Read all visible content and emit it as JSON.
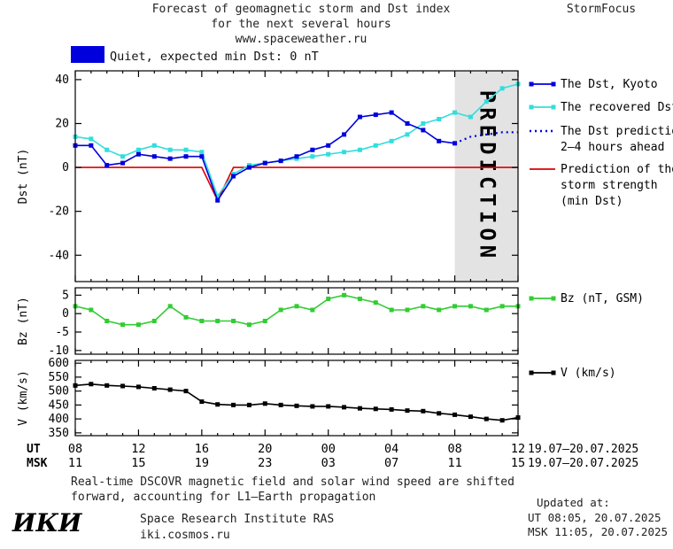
{
  "header": {
    "title_line1": "Forecast of geomagnetic storm and Dst index",
    "title_line2": "for the next several hours",
    "title_line3": "www.spaceweather.ru",
    "brand": "StormFocus"
  },
  "status": {
    "swatch_color": "#0000dd",
    "label": "Quiet, expected min Dst: 0 nT"
  },
  "chart_data": [
    {
      "type": "line",
      "name": "dst",
      "ylabel": "Dst (nT)",
      "xlim": [
        8,
        36
      ],
      "ylim": [
        -52,
        44
      ],
      "yticks": [
        40,
        20,
        0,
        -20,
        -40
      ],
      "prediction_band": {
        "x_start": 32,
        "x_end": 36,
        "label": "PREDICTION",
        "fill": "#e3e3e3",
        "text_color": "#bdbdbd"
      },
      "series": [
        {
          "name": "min-dst-prediction",
          "label": "Prediction of the storm strength (min Dst)",
          "color": "#dd0000",
          "marker": false,
          "dashed": false,
          "x": [
            8,
            16,
            17,
            18,
            36
          ],
          "values": [
            0,
            0,
            -15,
            0,
            0
          ]
        },
        {
          "name": "recovered-dst",
          "label": "The recovered Dst",
          "color": "#33dddd",
          "marker": true,
          "dashed": false,
          "x": [
            8,
            9,
            10,
            11,
            12,
            13,
            14,
            15,
            16,
            17,
            18,
            19,
            20,
            21,
            22,
            23,
            24,
            25,
            26,
            27,
            28,
            29,
            30,
            31,
            32,
            33,
            34,
            35,
            36
          ],
          "values": [
            14,
            13,
            8,
            5,
            8,
            10,
            8,
            8,
            7,
            -13,
            -3,
            1,
            2,
            3,
            4,
            5,
            6,
            7,
            8,
            10,
            12,
            15,
            20,
            22,
            25,
            23,
            30,
            36,
            38
          ]
        },
        {
          "name": "dst-kyoto",
          "label": "The Dst, Kyoto",
          "color": "#0000dd",
          "marker": true,
          "dashed": false,
          "x": [
            8,
            9,
            10,
            11,
            12,
            13,
            14,
            15,
            16,
            17,
            18,
            19,
            20,
            21,
            22,
            23,
            24,
            25,
            26,
            27,
            28,
            29,
            30,
            31,
            32
          ],
          "values": [
            10,
            10,
            1,
            2,
            6,
            5,
            4,
            5,
            5,
            -15,
            -4,
            0,
            2,
            3,
            5,
            8,
            10,
            15,
            23,
            24,
            25,
            20,
            17,
            12,
            11
          ]
        },
        {
          "name": "dst-prediction",
          "label": "The Dst prediction 2–4 hours ahead",
          "color": "#0000dd",
          "marker": false,
          "dashed": true,
          "x": [
            32,
            33,
            34,
            35,
            36
          ],
          "values": [
            11,
            14,
            15,
            16,
            16
          ]
        }
      ]
    },
    {
      "type": "line",
      "name": "bz",
      "ylabel": "Bz (nT)",
      "xlim": [
        8,
        36
      ],
      "ylim": [
        -11,
        7
      ],
      "yticks": [
        5,
        0,
        -5,
        -10
      ],
      "series": [
        {
          "name": "bz-gsm",
          "label": "Bz (nT, GSM)",
          "color": "#33cc33",
          "marker": true,
          "dashed": false,
          "x": [
            8,
            9,
            10,
            11,
            12,
            13,
            14,
            15,
            16,
            17,
            18,
            19,
            20,
            21,
            22,
            23,
            24,
            25,
            26,
            27,
            28,
            29,
            30,
            31,
            32,
            33,
            34,
            35,
            36
          ],
          "values": [
            2,
            1,
            -2,
            -3,
            -3,
            -2,
            2,
            -1,
            -2,
            -2,
            -2,
            -3,
            -2,
            1,
            2,
            1,
            4,
            5,
            4,
            3,
            1,
            1,
            2,
            1,
            2,
            2,
            1,
            2,
            2
          ]
        }
      ]
    },
    {
      "type": "line",
      "name": "v",
      "ylabel": "V (km/s)",
      "xlim": [
        8,
        36
      ],
      "ylim": [
        340,
        610
      ],
      "yticks": [
        600,
        550,
        500,
        450,
        400,
        350
      ],
      "series": [
        {
          "name": "solar-wind-speed",
          "label": "V (km/s)",
          "color": "#000000",
          "marker": true,
          "dashed": false,
          "x": [
            8,
            9,
            10,
            11,
            12,
            13,
            14,
            15,
            16,
            17,
            18,
            19,
            20,
            21,
            22,
            23,
            24,
            25,
            26,
            27,
            28,
            29,
            30,
            31,
            32,
            33,
            34,
            35,
            36
          ],
          "values": [
            520,
            525,
            520,
            518,
            515,
            510,
            505,
            500,
            462,
            452,
            450,
            450,
            455,
            450,
            447,
            445,
            445,
            442,
            438,
            436,
            434,
            430,
            428,
            420,
            415,
            408,
            400,
            395,
            405
          ]
        }
      ]
    }
  ],
  "xaxis": {
    "ut_label": "UT",
    "msk_label": "MSK",
    "ut_ticks": [
      "08",
      "12",
      "16",
      "20",
      "00",
      "04",
      "08",
      "12"
    ],
    "msk_ticks": [
      "11",
      "15",
      "19",
      "23",
      "03",
      "07",
      "11",
      "15"
    ],
    "ut_date_range": "19.07–20.07.2025",
    "msk_date_range": "19.07–20.07.2025"
  },
  "legend": {
    "items": [
      {
        "name": "dst-kyoto",
        "color": "#0000dd",
        "line": "solid",
        "marker": true,
        "lines": [
          "The Dst, Kyoto"
        ]
      },
      {
        "name": "recovered-dst",
        "color": "#33dddd",
        "line": "solid",
        "marker": true,
        "lines": [
          "The recovered Dst"
        ]
      },
      {
        "name": "dst-prediction",
        "color": "#0000dd",
        "line": "dotted",
        "marker": false,
        "lines": [
          "The Dst prediction",
          "2–4 hours ahead"
        ]
      },
      {
        "name": "storm-strength-prediction",
        "color": "#dd0000",
        "line": "solid",
        "marker": false,
        "lines": [
          "Prediction of the",
          "storm strength",
          "(min Dst)"
        ]
      },
      {
        "name": "bz-gsm",
        "color": "#33cc33",
        "line": "solid",
        "marker": true,
        "lines": [
          "Bz (nT, GSM)"
        ]
      },
      {
        "name": "solar-wind-speed",
        "color": "#000000",
        "line": "solid",
        "marker": true,
        "lines": [
          "V (km/s)"
        ]
      }
    ]
  },
  "footer": {
    "note_line1": "Real-time DSCOVR magnetic field and solar wind speed are shifted",
    "note_line2": "forward, accounting for L1–Earth propagation",
    "updated_label": "Updated at:",
    "updated_ut": "UT  08:05, 20.07.2025",
    "updated_msk": "MSK 11:05, 20.07.2025",
    "logo": "ИКИ",
    "institute": "Space Research Institute RAS",
    "website": "iki.cosmos.ru"
  }
}
